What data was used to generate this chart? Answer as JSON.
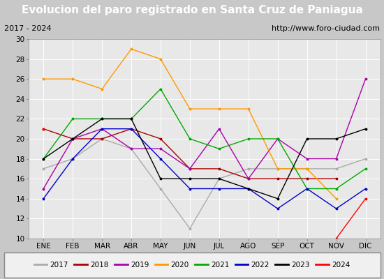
{
  "title": "Evolucion del paro registrado en Santa Cruz de Paniagua",
  "subtitle_left": "2017 - 2024",
  "subtitle_right": "http://www.foro-ciudad.com",
  "months": [
    "ENE",
    "FEB",
    "MAR",
    "ABR",
    "MAY",
    "JUN",
    "JUL",
    "AGO",
    "SEP",
    "OCT",
    "NOV",
    "DIC"
  ],
  "ylim": [
    10,
    30
  ],
  "yticks": [
    10,
    12,
    14,
    16,
    18,
    20,
    22,
    24,
    26,
    28,
    30
  ],
  "series": {
    "2017": {
      "color": "#aaaaaa",
      "data": [
        17,
        18,
        20,
        19,
        15,
        11,
        16,
        17,
        17,
        17,
        17,
        18
      ]
    },
    "2018": {
      "color": "#aa0000",
      "data": [
        21,
        20,
        20,
        21,
        20,
        17,
        17,
        16,
        16,
        16,
        16,
        null
      ]
    },
    "2019": {
      "color": "#aa00aa",
      "data": [
        15,
        20,
        21,
        19,
        19,
        17,
        21,
        16,
        20,
        18,
        18,
        26
      ]
    },
    "2020": {
      "color": "#ff9900",
      "data": [
        26,
        26,
        25,
        29,
        28,
        23,
        23,
        23,
        17,
        17,
        14,
        null
      ]
    },
    "2021": {
      "color": "#00aa00",
      "data": [
        18,
        22,
        22,
        22,
        25,
        20,
        19,
        20,
        20,
        15,
        15,
        17
      ]
    },
    "2022": {
      "color": "#0000cc",
      "data": [
        14,
        18,
        21,
        21,
        18,
        15,
        15,
        15,
        13,
        15,
        13,
        15
      ]
    },
    "2023": {
      "color": "#000000",
      "data": [
        18,
        20,
        22,
        22,
        16,
        16,
        16,
        15,
        14,
        20,
        20,
        21
      ]
    },
    "2024": {
      "color": "#ff0000",
      "data": [
        21,
        null,
        null,
        null,
        null,
        null,
        null,
        null,
        null,
        null,
        10,
        14
      ]
    }
  },
  "title_bg_color": "#3a6abf",
  "title_color": "#ffffff",
  "subtitle_bg_color": "#e0e0e0",
  "subtitle_color": "#000000",
  "plot_bg_color": "#e8e8e8",
  "grid_color": "#ffffff",
  "outer_bg_color": "#c8c8c8",
  "title_fontsize": 11,
  "subtitle_fontsize": 8,
  "axis_fontsize": 7.5,
  "legend_fontsize": 7.5
}
